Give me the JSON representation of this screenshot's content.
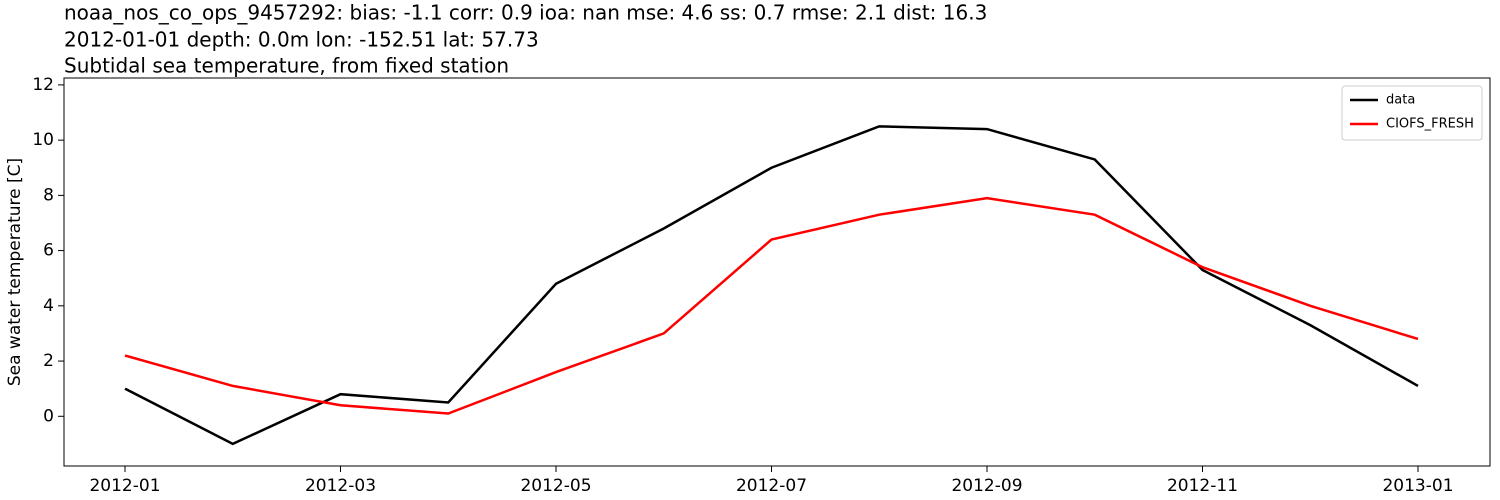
{
  "chart_data": {
    "type": "line",
    "title": [
      "noaa_nos_co_ops_9457292: bias: -1.1  corr: 0.9  ioa: nan  mse: 4.6  ss: 0.7  rmse: 2.1  dist: 16.3",
      "2012-01-01 depth: 0.0m lon: -152.51 lat: 57.73",
      "Subtidal sea temperature, from fixed station"
    ],
    "y_label": "Sea water temperature [C]",
    "x": [
      "2012-01",
      "2012-02",
      "2012-03",
      "2012-04",
      "2012-05",
      "2012-06",
      "2012-07",
      "2012-08",
      "2012-09",
      "2012-10",
      "2012-11",
      "2012-12",
      "2013-01"
    ],
    "series": [
      {
        "name": "data",
        "color": "#000000",
        "values": [
          1.0,
          -1.0,
          0.8,
          0.5,
          4.8,
          6.8,
          9.0,
          10.5,
          10.4,
          9.3,
          5.3,
          3.3,
          1.1
        ]
      },
      {
        "name": "CIOFS_FRESH",
        "color": "#ff0000",
        "values": [
          2.2,
          1.1,
          0.4,
          0.1,
          1.6,
          3.0,
          6.4,
          7.3,
          7.9,
          7.3,
          5.4,
          4.0,
          2.8
        ]
      }
    ],
    "xlim": [
      "2012-01",
      "2013-01"
    ],
    "xticks": [
      "2012-01",
      "2012-03",
      "2012-05",
      "2012-07",
      "2012-09",
      "2012-11",
      "2013-01"
    ],
    "ylim": [
      -1.8,
      12.25
    ],
    "yticks": [
      0,
      2,
      4,
      6,
      8,
      10,
      12
    ],
    "legend": "upper right"
  }
}
